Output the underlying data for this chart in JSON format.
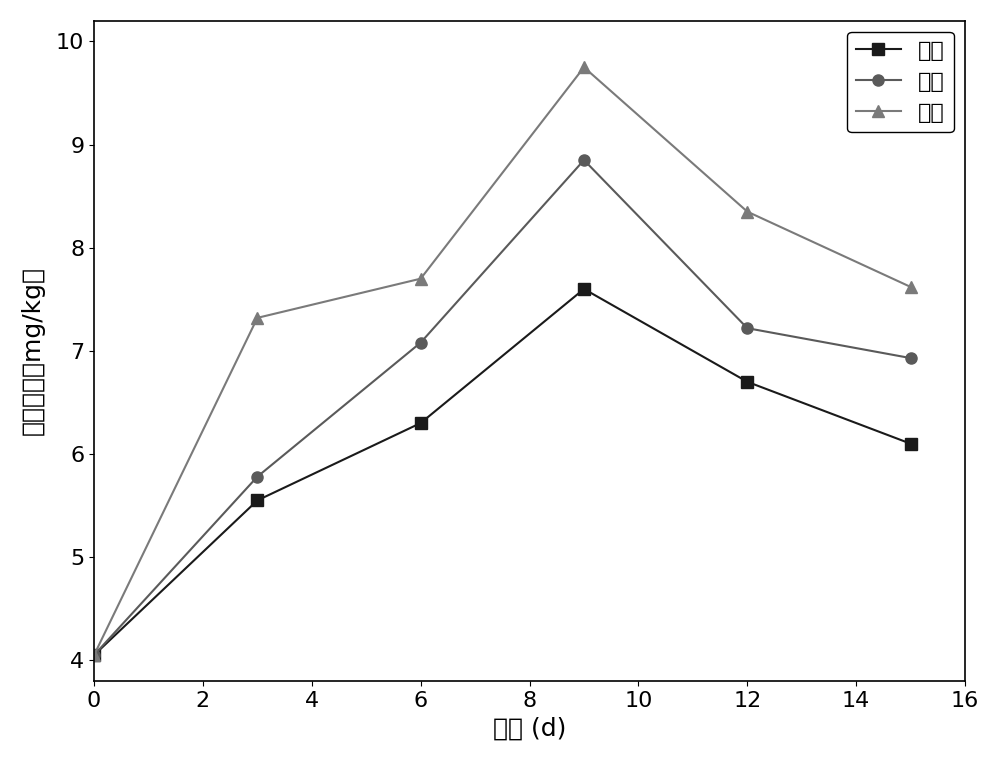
{
  "x": [
    0,
    3,
    6,
    9,
    12,
    15
  ],
  "nano": [
    4.05,
    5.55,
    6.3,
    7.6,
    6.7,
    6.1
  ],
  "putong": [
    4.05,
    5.78,
    7.08,
    8.85,
    7.22,
    6.93
  ],
  "kaikou": [
    4.05,
    7.32,
    7.7,
    9.75,
    8.35,
    7.62
  ],
  "nano_color": "#1a1a1a",
  "putong_color": "#5a5a5a",
  "kaikou_color": "#7a7a7a",
  "xlabel": "时间 (d)",
  "ylabel": "甲醉含量（mg/kg）",
  "legend_nano": "纳米",
  "legend_putong": "普通",
  "legend_kaikou": "开口",
  "xlim": [
    0,
    16
  ],
  "ylim": [
    3.8,
    10.2
  ],
  "xticks": [
    0,
    2,
    4,
    6,
    8,
    10,
    12,
    14,
    16
  ],
  "yticks": [
    4,
    5,
    6,
    7,
    8,
    9,
    10
  ],
  "xlabel_fontsize": 18,
  "ylabel_fontsize": 18,
  "tick_fontsize": 16,
  "legend_fontsize": 16,
  "linewidth": 1.5,
  "markersize": 8
}
